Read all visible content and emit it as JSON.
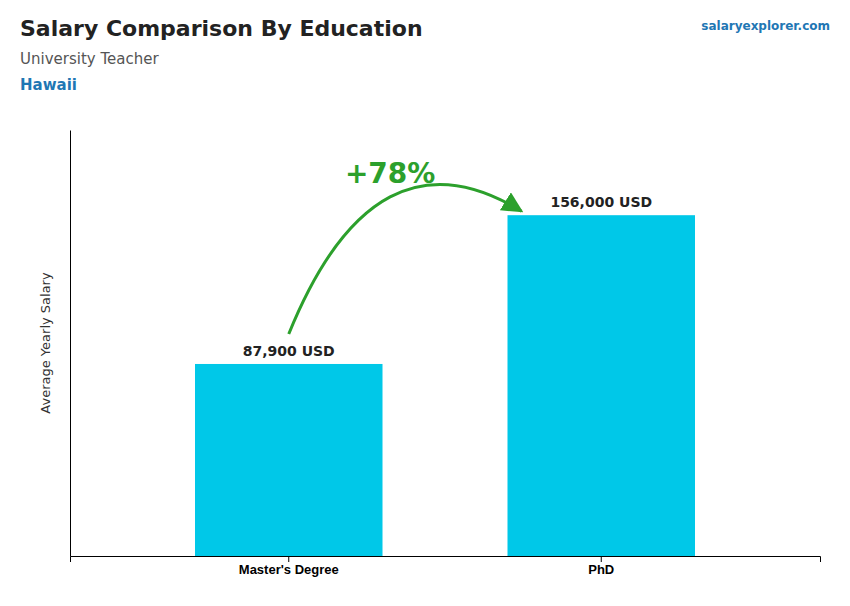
{
  "chart_data": {
    "type": "bar",
    "title": "Salary Comparison By Education",
    "subtitle": "University Teacher",
    "ylabel": "Average Yearly Salary",
    "annotations": [
      "Hawaii",
      "salaryexplorer.com",
      "+78%"
    ],
    "categories": [
      "Master's Degree",
      "PhD"
    ],
    "values": [
      87900,
      156000
    ],
    "value_labels": [
      "87,900 USD",
      "156,000 USD"
    ],
    "data_labels": true,
    "color": "#00c8e8",
    "ylim": [
      0,
      195000
    ],
    "tick_labels": "x"
  }
}
